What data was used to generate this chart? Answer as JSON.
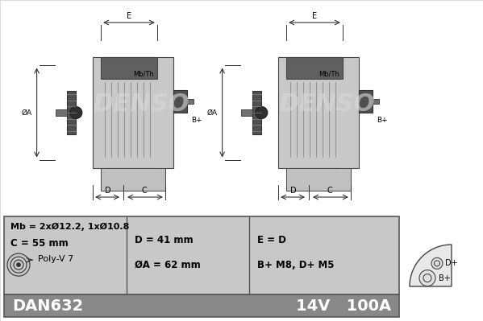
{
  "bg_color": "#ffffff",
  "border_color": "#000000",
  "gray_fill": "#b0b0b0",
  "light_gray": "#d0d0d0",
  "medium_gray": "#a8a8a8",
  "dark_gray": "#606060",
  "table_header_bg": "#909090",
  "table_body_bg": "#c8c8c8",
  "table_border": "#555555",
  "denso_watermark_color": "#d0d0d0",
  "part_number": "DAN632",
  "voltage": "14V",
  "current": "100A",
  "poly_v": "Poly-V 7",
  "dim_C": "C = 55 mm",
  "dim_Mb": "Mb = 2xØ12.2, 1xØ10.8",
  "dim_OA": "ØA = 62 mm",
  "dim_D": "D = 41 mm",
  "dim_terminals": "B+ M8, D+ M5",
  "dim_E": "E = D"
}
